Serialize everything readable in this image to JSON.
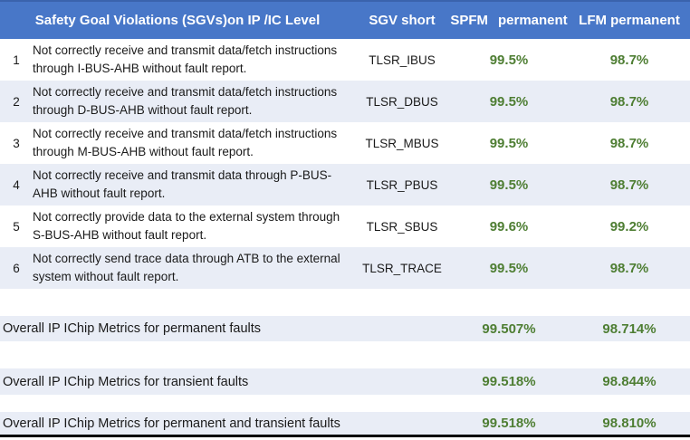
{
  "table": {
    "header": {
      "title": "Safety Goal Violations (SGVs)on IP /IC Level",
      "sgv_short": "SGV short",
      "spfm_word1": "SPFM",
      "spfm_word2": "permanent",
      "lfm": "LFM permanent"
    },
    "rows": [
      {
        "num": "1",
        "desc": "Not correctly receive and transmit data/fetch instructions\nthrough I-BUS-AHB without fault report.",
        "sgv": "TLSR_IBUS",
        "spfm": "99.5%",
        "lfm": "98.7%"
      },
      {
        "num": "2",
        "desc": "Not correctly receive and transmit data/fetch instructions\nthrough D-BUS-AHB without fault report.",
        "sgv": "TLSR_DBUS",
        "spfm": "99.5%",
        "lfm": "98.7%"
      },
      {
        "num": "3",
        "desc": "Not correctly receive and transmit data/fetch instructions\nthrough M-BUS-AHB without fault report.",
        "sgv": "TLSR_MBUS",
        "spfm": "99.5%",
        "lfm": "98.7%"
      },
      {
        "num": "4",
        "desc": "Not correctly receive and transmit data through P-BUS-\nAHB without fault report.",
        "sgv": "TLSR_PBUS",
        "spfm": "99.5%",
        "lfm": "98.7%"
      },
      {
        "num": "5",
        "desc": "Not correctly provide data to the external system through\nS-BUS-AHB without fault report.",
        "sgv": "TLSR_SBUS",
        "spfm": "99.6%",
        "lfm": "99.2%"
      },
      {
        "num": "6",
        "desc": "Not correctly send trace data through ATB to the external\nsystem without fault report.",
        "sgv": "TLSR_TRACE",
        "spfm": "99.5%",
        "lfm": "98.7%"
      }
    ],
    "summaries": [
      {
        "label": "Overall IP IChip Metrics for permanent faults",
        "spfm": "99.507%",
        "lfm": "98.714%"
      },
      {
        "label": "Overall IP IChip Metrics for transient faults",
        "spfm": "99.518%",
        "lfm": "98.844%"
      },
      {
        "label": "Overall IP IChip Metrics for permanent and transient faults",
        "spfm": "99.518%",
        "lfm": "98.810%"
      }
    ]
  },
  "colors": {
    "header_bg": "#4877c8",
    "header_top_border": "#3a63ad",
    "band_bg": "#e9edf6",
    "value_green": "#4e7e33",
    "body_text": "#1a1a1a",
    "bottom_rule": "#000000"
  }
}
